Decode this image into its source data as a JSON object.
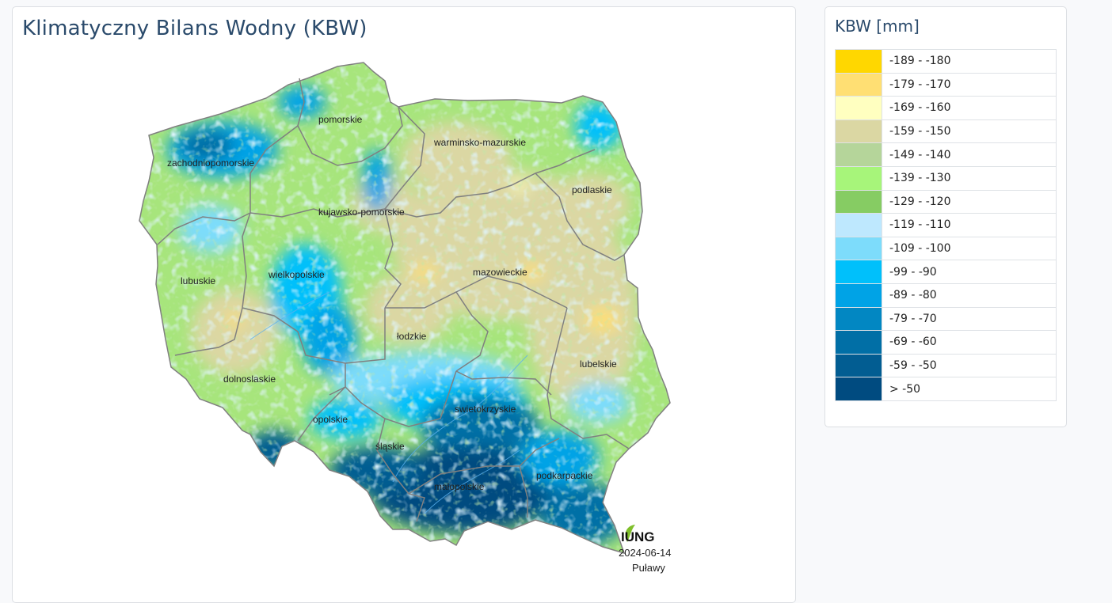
{
  "map": {
    "title": "Klimatyczny Bilans Wodny (KBW)",
    "regions": [
      {
        "id": "pomorskie",
        "label": "pomorskie"
      },
      {
        "id": "warminsko-mazurskie",
        "label": "warminsko-mazurskie"
      },
      {
        "id": "zachodniopomorskie",
        "label": "zachodniopomorskie"
      },
      {
        "id": "podlaskie",
        "label": "podlaskie"
      },
      {
        "id": "kujawsko-pomorskie",
        "label": "kujawsko-pomorskie"
      },
      {
        "id": "lubuskie",
        "label": "lubuskie"
      },
      {
        "id": "wielkopolskie",
        "label": "wielkopolskie"
      },
      {
        "id": "mazowieckie",
        "label": "mazowieckie"
      },
      {
        "id": "lodzkie",
        "label": "łodzkie"
      },
      {
        "id": "lubelskie",
        "label": "lubelskie"
      },
      {
        "id": "dolnoslaskie",
        "label": "dolnoslaskie"
      },
      {
        "id": "swietokrzyskie",
        "label": "swietokrzyskie"
      },
      {
        "id": "opolskie",
        "label": "opolskie"
      },
      {
        "id": "slaskie",
        "label": "śląskie"
      },
      {
        "id": "malopolskie",
        "label": "małopolskie"
      },
      {
        "id": "podkarpackie",
        "label": "podkarpackie"
      }
    ],
    "logo": "IUNG",
    "date": "2024-06-14",
    "place": "Puławy"
  },
  "legend": {
    "title": "KBW [mm]",
    "items": [
      {
        "label": "-189 - -180",
        "color": "#ffd700"
      },
      {
        "label": "-179 - -170",
        "color": "#ffdf73"
      },
      {
        "label": "-169 - -160",
        "color": "#ffffc0"
      },
      {
        "label": "-159 - -150",
        "color": "#dbd7a3"
      },
      {
        "label": "-149 - -140",
        "color": "#b5d59a"
      },
      {
        "label": "-139 - -130",
        "color": "#a7f57a"
      },
      {
        "label": "-129 - -120",
        "color": "#86cc63"
      },
      {
        "label": "-119 - -110",
        "color": "#bee8fe"
      },
      {
        "label": "-109 - -100",
        "color": "#7ddcfb"
      },
      {
        "label": "-99 - -90",
        "color": "#00c0fb"
      },
      {
        "label": "-89 - -80",
        "color": "#00a3e6"
      },
      {
        "label": "-79 - -70",
        "color": "#0287c2"
      },
      {
        "label": "-69 - -60",
        "color": "#016fa6"
      },
      {
        "label": "-59 - -50",
        "color": "#025d92"
      },
      {
        "label": "> -50",
        "color": "#004b80"
      }
    ]
  }
}
